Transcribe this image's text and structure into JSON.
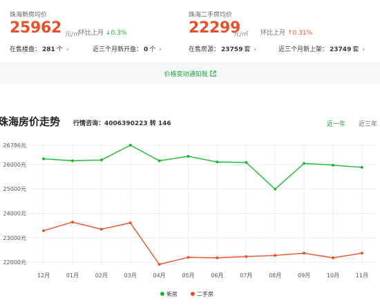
{
  "new_house": {
    "title": "珠海新房均价",
    "price": "25962",
    "unit": "元/㎡",
    "mom_label": "环比上月",
    "mom_value": "↓0.3%",
    "on_sale_label": "在售楼盘：",
    "on_sale_value": "281",
    "on_sale_unit": "个",
    "recent_label": "近三个月新开盘：",
    "recent_value": "0",
    "recent_unit": "个"
  },
  "second_house": {
    "title": "珠海二手房均价",
    "price": "22299",
    "unit": "元/㎡",
    "mom_label": "环比上月",
    "mom_value": "↑0.31%",
    "on_sale_label": "在售房源：",
    "on_sale_value": "23759",
    "on_sale_unit": "套",
    "recent_label": "近三个月新上架：",
    "recent_value": "23749",
    "recent_unit": "套"
  },
  "notify_text": "价格变动通知我",
  "trend": {
    "title": "珠海房价走势",
    "hotline": "行情咨询：4006390223 转 146",
    "tabs": [
      "近一年",
      "近三年"
    ],
    "active_tab": "近一年"
  },
  "colors": {
    "new": "#19b92f",
    "second": "#e9502a"
  },
  "chart_data": {
    "type": "line",
    "categories": [
      "12月",
      "01月",
      "02月",
      "03月",
      "04月",
      "05月",
      "06月",
      "07月",
      "08月",
      "09月",
      "10月",
      "11月"
    ],
    "y_ticks": [
      {
        "value": 26786,
        "label": "26786元"
      },
      {
        "value": 26000,
        "label": "26000元"
      },
      {
        "value": 25000,
        "label": "25000元"
      },
      {
        "value": 24000,
        "label": "24000元"
      },
      {
        "value": 23000,
        "label": "23000元"
      },
      {
        "value": 22000,
        "label": "22000元"
      }
    ],
    "ylim": [
      21950,
      26786
    ],
    "series": [
      {
        "name": "新房",
        "values": [
          26230,
          26150,
          26180,
          26790,
          26150,
          26330,
          26100,
          26080,
          24990,
          26040,
          25970,
          25880
        ]
      },
      {
        "name": "二手房",
        "values": [
          23290,
          23640,
          23350,
          23610,
          21910,
          22200,
          22180,
          22230,
          22280,
          22370,
          22180,
          22370
        ]
      }
    ]
  }
}
